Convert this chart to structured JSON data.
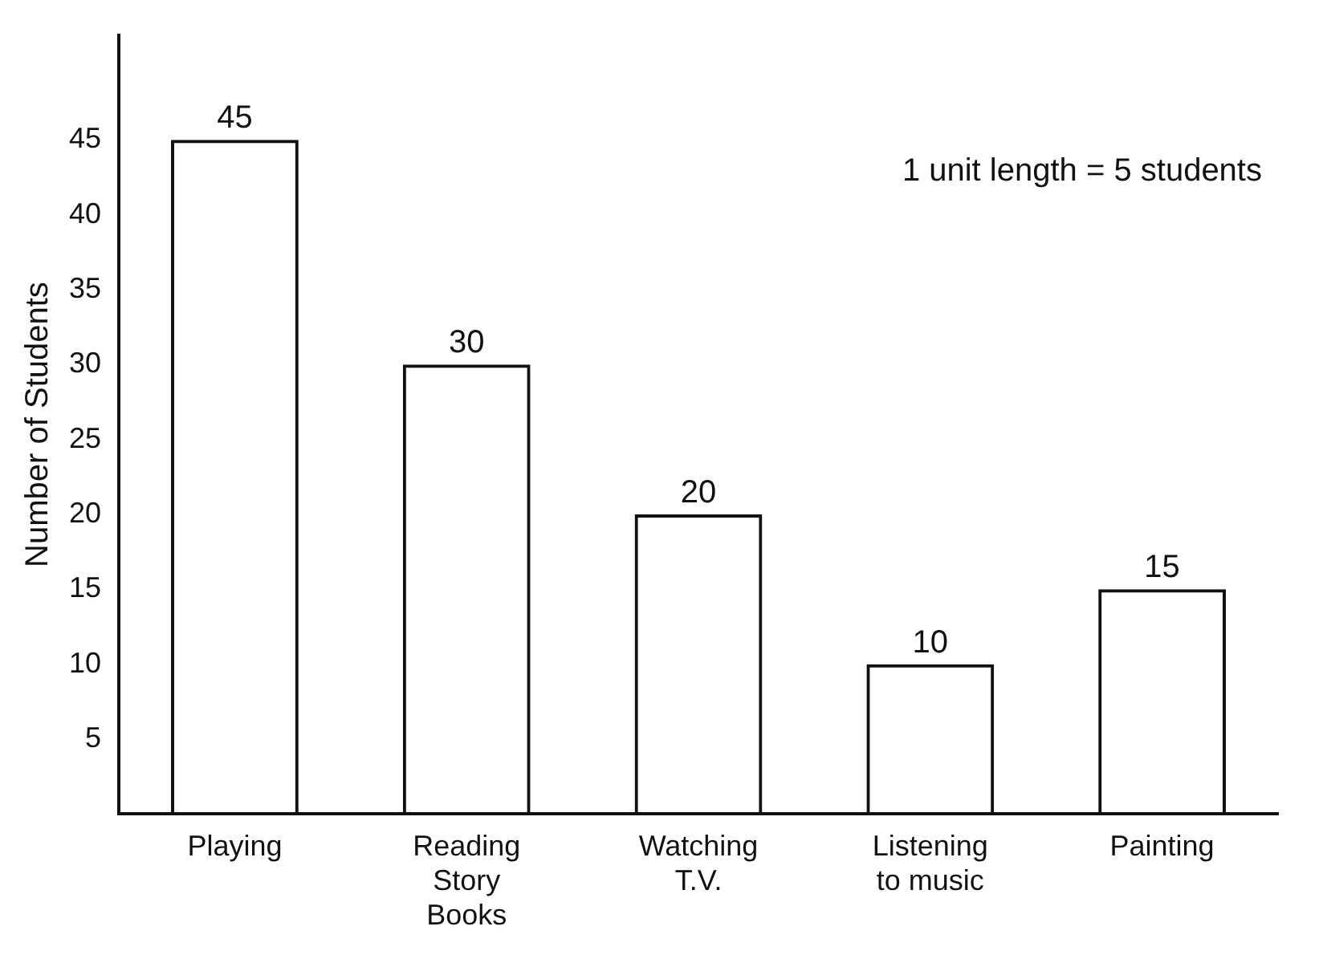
{
  "chart_data": {
    "type": "bar",
    "ylabel": "Number of Students",
    "categories": [
      "Playing",
      "Reading\nStory\nBooks",
      "Watching\nT.V.",
      "Listening\nto music",
      "Painting"
    ],
    "values": [
      45,
      30,
      20,
      10,
      15
    ],
    "color": "#111111",
    "ylim": [
      0,
      52
    ],
    "yticks": [
      5,
      10,
      15,
      20,
      25,
      30,
      35,
      40,
      45
    ],
    "data_labels": true,
    "grid": false,
    "legend": false,
    "annotations": [
      "1 unit length = 5 students"
    ]
  }
}
